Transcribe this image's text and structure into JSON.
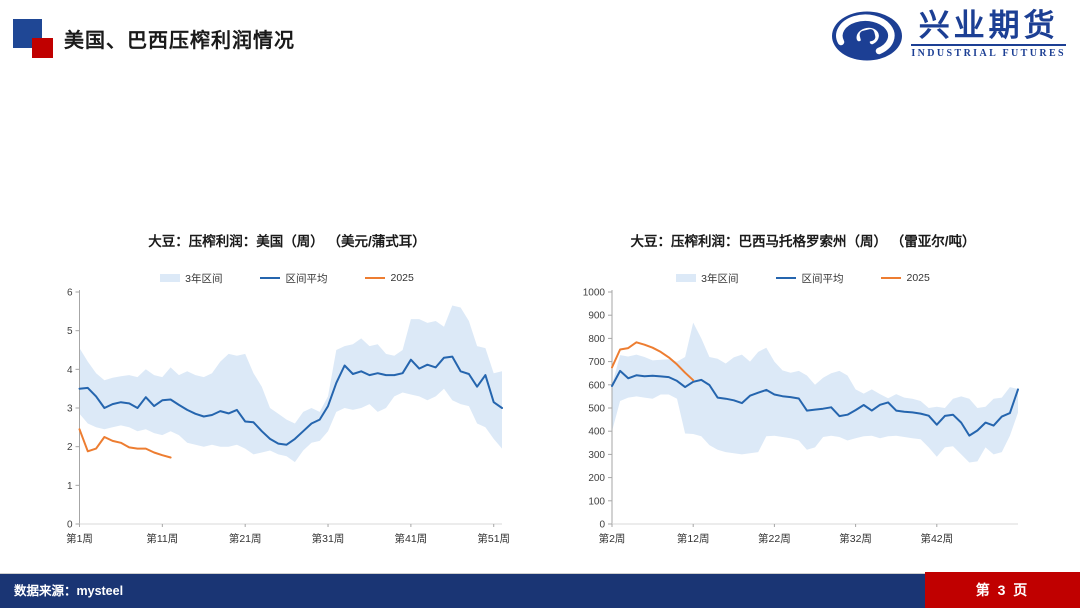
{
  "header": {
    "title": "美国、巴西压榨利润情况"
  },
  "logo": {
    "cn": "兴业期货",
    "en": "INDUSTRIAL FUTURES"
  },
  "footer": {
    "source": "数据来源：mysteel",
    "page": "第 3 页"
  },
  "colors": {
    "accent_blue": "#1f4795",
    "accent_red": "#c00000",
    "logo_blue": "#1c3f94",
    "footer_navy": "#1a3574",
    "band_fill": "#dce9f7",
    "mean_line": "#2565ae",
    "line_2025": "#ed7d31",
    "axis_gray": "#a6a6a6"
  },
  "chart_data": [
    {
      "type": "area",
      "title": "大豆：压榨利润：美国（周） （美元/蒲式耳）",
      "legend": [
        "3年区间",
        "区间平均",
        "2025"
      ],
      "xlim": [
        1,
        52
      ],
      "ylim": [
        0,
        6
      ],
      "yticks": [
        0,
        1,
        2,
        3,
        4,
        5,
        6
      ],
      "xticks": [
        {
          "week": 1,
          "label": "第1周"
        },
        {
          "week": 11,
          "label": "第11周"
        },
        {
          "week": 21,
          "label": "第21周"
        },
        {
          "week": 31,
          "label": "第31周"
        },
        {
          "week": 41,
          "label": "第41周"
        },
        {
          "week": 51,
          "label": "第51周"
        }
      ],
      "x": [
        1,
        2,
        3,
        4,
        5,
        6,
        7,
        8,
        9,
        10,
        11,
        12,
        13,
        14,
        15,
        16,
        17,
        18,
        19,
        20,
        21,
        22,
        23,
        24,
        25,
        26,
        27,
        28,
        29,
        30,
        31,
        32,
        33,
        34,
        35,
        36,
        37,
        38,
        39,
        40,
        41,
        42,
        43,
        44,
        45,
        46,
        47,
        48,
        49,
        50,
        51,
        52
      ],
      "series": [
        {
          "name": "3年区间",
          "type": "band",
          "upper": [
            4.55,
            4.2,
            3.9,
            3.72,
            3.78,
            3.82,
            3.85,
            3.8,
            4.0,
            3.85,
            3.8,
            4.05,
            3.85,
            3.95,
            3.85,
            3.8,
            3.9,
            4.2,
            4.4,
            4.35,
            4.4,
            3.9,
            3.55,
            3.0,
            2.85,
            2.7,
            2.6,
            2.9,
            3.0,
            2.9,
            3.3,
            4.5,
            4.6,
            4.65,
            4.8,
            4.6,
            4.65,
            4.4,
            4.35,
            4.5,
            5.3,
            5.3,
            5.2,
            5.25,
            5.1,
            5.65,
            5.6,
            5.25,
            4.6,
            4.55,
            3.9,
            3.95
          ],
          "lower": [
            2.85,
            2.6,
            2.5,
            2.45,
            2.5,
            2.55,
            2.5,
            2.4,
            2.45,
            2.35,
            2.3,
            2.4,
            2.3,
            2.1,
            2.05,
            2.0,
            2.05,
            2.0,
            2.0,
            2.05,
            1.95,
            1.8,
            1.85,
            1.9,
            1.8,
            1.75,
            1.6,
            1.9,
            2.1,
            2.15,
            2.4,
            2.9,
            3.0,
            2.95,
            3.0,
            3.1,
            2.9,
            3.0,
            3.3,
            3.4,
            3.35,
            3.3,
            3.2,
            3.3,
            3.5,
            3.2,
            3.1,
            3.05,
            2.6,
            2.5,
            2.2,
            1.95
          ]
        },
        {
          "name": "区间平均",
          "type": "line",
          "values": [
            3.5,
            3.52,
            3.3,
            3.0,
            3.1,
            3.15,
            3.12,
            3.0,
            3.28,
            3.05,
            3.2,
            3.22,
            3.08,
            2.95,
            2.85,
            2.78,
            2.82,
            2.92,
            2.86,
            2.95,
            2.65,
            2.63,
            2.4,
            2.2,
            2.08,
            2.05,
            2.2,
            2.4,
            2.6,
            2.7,
            3.05,
            3.65,
            4.1,
            3.88,
            3.95,
            3.85,
            3.9,
            3.85,
            3.85,
            3.9,
            4.25,
            4.02,
            4.12,
            4.05,
            4.3,
            4.33,
            3.95,
            3.88,
            3.55,
            3.85,
            3.15,
            3.0
          ]
        },
        {
          "name": "2025",
          "type": "line",
          "x": [
            1,
            2,
            3,
            4,
            5,
            6,
            7,
            8,
            9,
            10,
            11,
            12
          ],
          "values": [
            2.45,
            1.88,
            1.95,
            2.25,
            2.15,
            2.1,
            1.98,
            1.95,
            1.95,
            1.85,
            1.78,
            1.72
          ]
        }
      ]
    },
    {
      "type": "area",
      "title": "大豆：压榨利润：巴西马托格罗索州（周） （雷亚尔/吨）",
      "legend": [
        "3年区间",
        "区间平均",
        "2025"
      ],
      "xlim": [
        2,
        52
      ],
      "ylim": [
        0,
        1000
      ],
      "yticks": [
        0,
        100,
        200,
        300,
        400,
        500,
        600,
        700,
        800,
        900,
        1000
      ],
      "xticks": [
        {
          "week": 2,
          "label": "第2周"
        },
        {
          "week": 12,
          "label": "第12周"
        },
        {
          "week": 22,
          "label": "第22周"
        },
        {
          "week": 32,
          "label": "第32周"
        },
        {
          "week": 42,
          "label": "第42周"
        }
      ],
      "x": [
        2,
        3,
        4,
        5,
        6,
        7,
        8,
        9,
        10,
        11,
        12,
        13,
        14,
        15,
        16,
        17,
        18,
        19,
        20,
        21,
        22,
        23,
        24,
        25,
        26,
        27,
        28,
        29,
        30,
        31,
        32,
        33,
        34,
        35,
        36,
        37,
        38,
        39,
        40,
        41,
        42,
        43,
        44,
        45,
        46,
        47,
        48,
        49,
        50,
        51,
        52
      ],
      "series": [
        {
          "name": "3年区间",
          "type": "band",
          "upper": [
            600,
            728,
            722,
            730,
            720,
            705,
            708,
            710,
            700,
            720,
            868,
            800,
            720,
            712,
            692,
            718,
            730,
            700,
            742,
            760,
            700,
            662,
            652,
            660,
            640,
            600,
            630,
            650,
            660,
            640,
            580,
            562,
            580,
            560,
            542,
            560,
            545,
            540,
            530,
            500,
            505,
            500,
            540,
            550,
            540,
            500,
            505,
            540,
            545,
            590,
            582
          ],
          "lower": [
            400,
            530,
            545,
            550,
            545,
            540,
            558,
            558,
            540,
            390,
            388,
            378,
            340,
            320,
            310,
            305,
            300,
            305,
            310,
            378,
            380,
            375,
            370,
            360,
            320,
            330,
            375,
            380,
            375,
            360,
            370,
            378,
            380,
            370,
            378,
            380,
            375,
            370,
            365,
            330,
            290,
            330,
            335,
            300,
            265,
            270,
            330,
            300,
            310,
            380,
            480
          ]
        },
        {
          "name": "区间平均",
          "type": "line",
          "values": [
            595,
            660,
            628,
            641,
            637,
            639,
            636,
            633,
            617,
            590,
            613,
            621,
            599,
            545,
            540,
            533,
            521,
            553,
            566,
            578,
            558,
            551,
            547,
            541,
            489,
            493,
            497,
            503,
            465,
            471,
            491,
            513,
            489,
            514,
            524,
            489,
            484,
            481,
            476,
            467,
            428,
            466,
            471,
            437,
            381,
            403,
            437,
            424,
            463,
            478,
            580
          ]
        },
        {
          "name": "2025",
          "type": "line",
          "x": [
            2,
            3,
            4,
            5,
            6,
            7,
            8,
            9,
            10,
            11,
            12
          ],
          "values": [
            675,
            752,
            758,
            783,
            773,
            760,
            742,
            718,
            688,
            652,
            620
          ]
        }
      ]
    }
  ]
}
